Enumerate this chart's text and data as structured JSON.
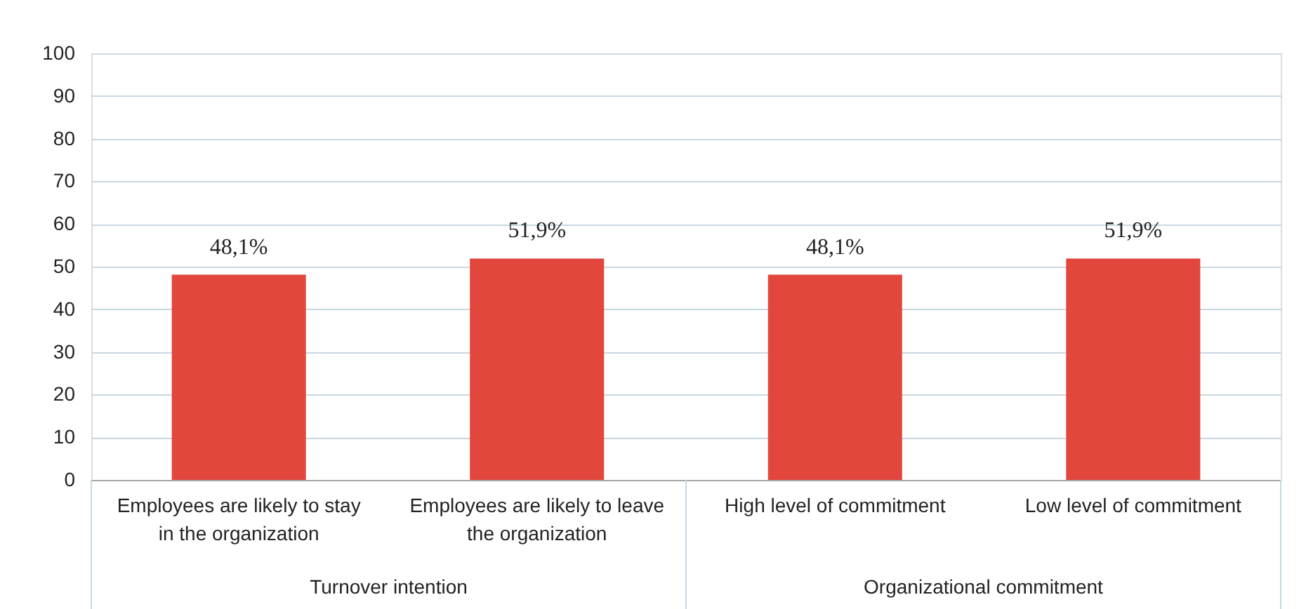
{
  "chart_data": {
    "type": "bar",
    "categories": [
      "Employees are likely to stay in the organization",
      "Employees are likely to leave the organization",
      "High level of commitment",
      "Low level of commitment"
    ],
    "values": [
      48.1,
      51.9,
      48.1,
      51.9
    ],
    "value_labels": [
      "48,1%",
      "51,9%",
      "48,1%",
      "51,9%"
    ],
    "color": "#e2463d",
    "annotations": [
      "Turnover intention",
      "Organizational commitment"
    ],
    "ylim": [
      0,
      100
    ],
    "yticks": [
      0,
      10,
      20,
      30,
      40,
      50,
      60,
      70,
      80,
      90,
      100
    ],
    "grid": "y"
  }
}
